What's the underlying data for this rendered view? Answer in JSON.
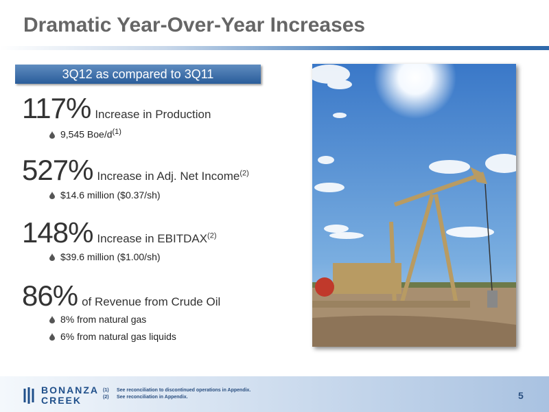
{
  "title": "Dramatic Year-Over-Year Increases",
  "banner": "3Q12 as compared to 3Q11",
  "items": [
    {
      "big": "117%",
      "text": "Increase in Production",
      "bullets": [
        {
          "text": "9,545 Boe/d",
          "sup": "(1)"
        }
      ]
    },
    {
      "big": "527%",
      "text": "Increase in Adj. Net Income",
      "sup": "(2)",
      "bullets": [
        {
          "text": "$14.6 million ($0.37/sh)"
        }
      ]
    },
    {
      "big": "148%",
      "text": "Increase in EBITDAX",
      "sup": "(2)",
      "bullets": [
        {
          "text": "$39.6 million ($1.00/sh)"
        }
      ]
    },
    {
      "big": "86%",
      "text": "of Revenue from Crude Oil",
      "bullets": [
        {
          "text": "8% from natural gas"
        },
        {
          "text": "6% from natural gas liquids"
        }
      ]
    }
  ],
  "logo": {
    "line1": "BONANZA",
    "line2": "CREEK"
  },
  "footnotes": [
    {
      "marker": "(1)",
      "text": "See reconciliation to discontinued operations in Appendix."
    },
    {
      "marker": "(2)",
      "text": "See reconciliation in Appendix."
    }
  ],
  "page_number": "5"
}
